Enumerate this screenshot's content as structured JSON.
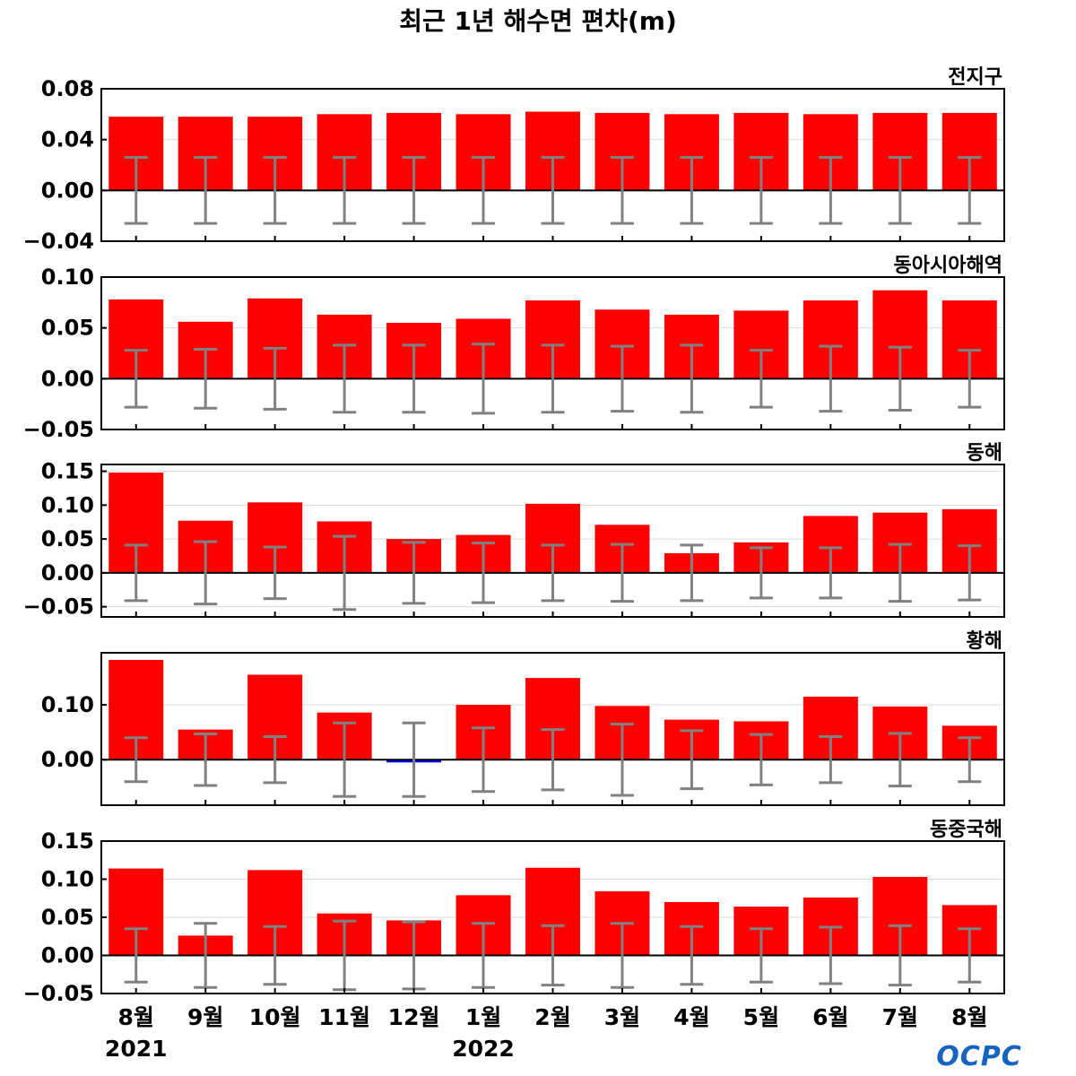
{
  "title": "최근 1년 해수면 편차(m)",
  "logo": "OCPC",
  "colors": {
    "positive_bar": "#ff0000",
    "negative_bar": "#0000ff",
    "error_bar": "#808080",
    "zero_line": "#000000",
    "grid": "#dddddd",
    "logo": "#1565c0"
  },
  "months": [
    "8월",
    "9월",
    "10월",
    "11월",
    "12월",
    "1월",
    "2월",
    "3월",
    "4월",
    "5월",
    "6월",
    "7월",
    "8월"
  ],
  "years": [
    {
      "label": "2021",
      "under_index": 0
    },
    {
      "label": "2022",
      "under_index": 5
    }
  ],
  "chart_data": [
    {
      "type": "bar",
      "region": "전지구",
      "ylim": [
        -0.04,
        0.08
      ],
      "yticks": [
        -0.04,
        0.0,
        0.04,
        0.08
      ],
      "ytick_labels": [
        "−0.04",
        "0.00",
        "0.04",
        "0.08"
      ],
      "values": [
        0.058,
        0.058,
        0.058,
        0.06,
        0.061,
        0.06,
        0.062,
        0.061,
        0.06,
        0.061,
        0.06,
        0.061,
        0.061
      ],
      "error": [
        0.026,
        0.026,
        0.026,
        0.026,
        0.026,
        0.026,
        0.026,
        0.026,
        0.026,
        0.026,
        0.026,
        0.026,
        0.026
      ]
    },
    {
      "type": "bar",
      "region": "동아시아해역",
      "ylim": [
        -0.05,
        0.1
      ],
      "yticks": [
        -0.05,
        0.0,
        0.05,
        0.1
      ],
      "ytick_labels": [
        "−0.05",
        "0.00",
        "0.05",
        "0.10"
      ],
      "values": [
        0.078,
        0.056,
        0.079,
        0.063,
        0.055,
        0.059,
        0.077,
        0.068,
        0.063,
        0.067,
        0.077,
        0.087,
        0.077
      ],
      "error": [
        0.028,
        0.029,
        0.03,
        0.033,
        0.033,
        0.034,
        0.033,
        0.032,
        0.033,
        0.028,
        0.032,
        0.031,
        0.028
      ]
    },
    {
      "type": "bar",
      "region": "동해",
      "ylim": [
        -0.065,
        0.16
      ],
      "yticks": [
        -0.05,
        0.0,
        0.05,
        0.1,
        0.15
      ],
      "ytick_labels": [
        "−0.05",
        "0.00",
        "0.05",
        "0.10",
        "0.15"
      ],
      "values": [
        0.148,
        0.077,
        0.104,
        0.076,
        0.05,
        0.056,
        0.102,
        0.071,
        0.029,
        0.045,
        0.084,
        0.089,
        0.094
      ],
      "error": [
        0.041,
        0.046,
        0.038,
        0.054,
        0.045,
        0.044,
        0.041,
        0.042,
        0.041,
        0.037,
        0.037,
        0.042,
        0.04
      ]
    },
    {
      "type": "bar",
      "region": "황해",
      "ylim": [
        -0.083,
        0.195
      ],
      "yticks": [
        0.0,
        0.1
      ],
      "ytick_labels": [
        "0.00",
        "0.10"
      ],
      "values": [
        0.182,
        0.055,
        0.155,
        0.086,
        -0.005,
        0.1,
        0.149,
        0.098,
        0.073,
        0.07,
        0.115,
        0.097,
        0.062
      ],
      "error": [
        0.04,
        0.047,
        0.042,
        0.067,
        0.067,
        0.058,
        0.055,
        0.065,
        0.053,
        0.046,
        0.042,
        0.048,
        0.04
      ]
    },
    {
      "type": "bar",
      "region": "동중국해",
      "ylim": [
        -0.05,
        0.15
      ],
      "yticks": [
        -0.05,
        0.0,
        0.05,
        0.1,
        0.15
      ],
      "ytick_labels": [
        "−0.05",
        "0.00",
        "0.05",
        "0.10",
        "0.15"
      ],
      "values": [
        0.114,
        0.026,
        0.112,
        0.055,
        0.046,
        0.079,
        0.115,
        0.084,
        0.07,
        0.064,
        0.076,
        0.103,
        0.066
      ],
      "error": [
        0.035,
        0.042,
        0.038,
        0.045,
        0.044,
        0.042,
        0.039,
        0.042,
        0.038,
        0.035,
        0.037,
        0.039,
        0.035
      ]
    }
  ]
}
